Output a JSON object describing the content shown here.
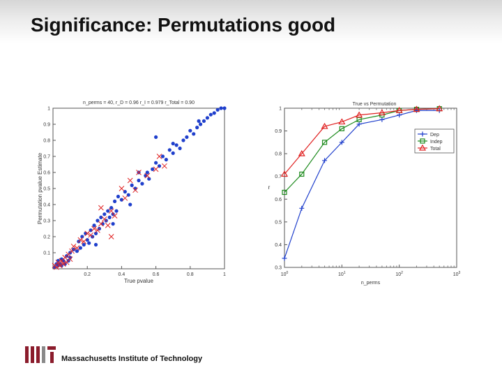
{
  "slide": {
    "title": "Significance: Permutations good",
    "footer": "Massachusetts Institute of Technology",
    "colors": {
      "blue": "#1f3fcc",
      "red": "#e02020",
      "green": "#1c8a1c",
      "logo_red": "#8b1c2c",
      "logo_gray": "#8a8a8a"
    }
  },
  "chart_data": [
    {
      "type": "scatter",
      "title": "n_perms = 40, r_D = 0.96 r_I = 0.979 r_Total = 0.90",
      "xlabel": "True pvalue",
      "ylabel": "Permutation pvalue Estimate",
      "xlim": [
        0,
        1
      ],
      "ylim": [
        0,
        1
      ],
      "xticks": [
        "0.2",
        "0.4",
        "0.6",
        "0.8",
        "1"
      ],
      "yticks": [
        "0.1",
        "0.2",
        "0.3",
        "0.4",
        "0.5",
        "0.6",
        "0.7",
        "0.8",
        "0.9",
        "1"
      ],
      "series": [
        {
          "marker": "dot",
          "color": "#1f3fcc",
          "points": [
            [
              0.01,
              0.01
            ],
            [
              0.02,
              0.03
            ],
            [
              0.03,
              0.02
            ],
            [
              0.03,
              0.05
            ],
            [
              0.04,
              0.03
            ],
            [
              0.05,
              0.06
            ],
            [
              0.05,
              0.02
            ],
            [
              0.06,
              0.05
            ],
            [
              0.07,
              0.03
            ],
            [
              0.08,
              0.08
            ],
            [
              0.09,
              0.05
            ],
            [
              0.1,
              0.1
            ],
            [
              0.1,
              0.07
            ],
            [
              0.12,
              0.12
            ],
            [
              0.14,
              0.11
            ],
            [
              0.15,
              0.17
            ],
            [
              0.16,
              0.13
            ],
            [
              0.17,
              0.2
            ],
            [
              0.18,
              0.15
            ],
            [
              0.19,
              0.22
            ],
            [
              0.2,
              0.18
            ],
            [
              0.21,
              0.16
            ],
            [
              0.22,
              0.24
            ],
            [
              0.23,
              0.2
            ],
            [
              0.24,
              0.27
            ],
            [
              0.25,
              0.22
            ],
            [
              0.26,
              0.3
            ],
            [
              0.27,
              0.25
            ],
            [
              0.28,
              0.32
            ],
            [
              0.29,
              0.28
            ],
            [
              0.3,
              0.34
            ],
            [
              0.31,
              0.3
            ],
            [
              0.32,
              0.36
            ],
            [
              0.33,
              0.32
            ],
            [
              0.34,
              0.38
            ],
            [
              0.35,
              0.34
            ],
            [
              0.36,
              0.42
            ],
            [
              0.37,
              0.36
            ],
            [
              0.38,
              0.45
            ],
            [
              0.4,
              0.43
            ],
            [
              0.42,
              0.48
            ],
            [
              0.44,
              0.46
            ],
            [
              0.46,
              0.52
            ],
            [
              0.48,
              0.5
            ],
            [
              0.5,
              0.55
            ],
            [
              0.52,
              0.53
            ],
            [
              0.54,
              0.58
            ],
            [
              0.56,
              0.56
            ],
            [
              0.58,
              0.62
            ],
            [
              0.6,
              0.66
            ],
            [
              0.62,
              0.64
            ],
            [
              0.64,
              0.7
            ],
            [
              0.66,
              0.68
            ],
            [
              0.68,
              0.74
            ],
            [
              0.7,
              0.72
            ],
            [
              0.72,
              0.77
            ],
            [
              0.74,
              0.75
            ],
            [
              0.76,
              0.8
            ],
            [
              0.78,
              0.82
            ],
            [
              0.8,
              0.86
            ],
            [
              0.82,
              0.84
            ],
            [
              0.84,
              0.88
            ],
            [
              0.86,
              0.9
            ],
            [
              0.88,
              0.92
            ],
            [
              0.9,
              0.94
            ],
            [
              0.92,
              0.96
            ],
            [
              0.94,
              0.97
            ],
            [
              0.96,
              0.99
            ],
            [
              0.98,
              1.0
            ],
            [
              1.0,
              1.0
            ],
            [
              0.6,
              0.82
            ],
            [
              0.55,
              0.6
            ],
            [
              0.45,
              0.4
            ],
            [
              0.25,
              0.15
            ],
            [
              0.35,
              0.28
            ],
            [
              0.7,
              0.78
            ],
            [
              0.5,
              0.6
            ],
            [
              0.85,
              0.92
            ]
          ]
        },
        {
          "marker": "x",
          "color": "#e02020",
          "points": [
            [
              0.01,
              0.02
            ],
            [
              0.02,
              0.01
            ],
            [
              0.03,
              0.04
            ],
            [
              0.04,
              0.02
            ],
            [
              0.05,
              0.05
            ],
            [
              0.06,
              0.03
            ],
            [
              0.07,
              0.07
            ],
            [
              0.08,
              0.04
            ],
            [
              0.09,
              0.09
            ],
            [
              0.1,
              0.06
            ],
            [
              0.11,
              0.11
            ],
            [
              0.12,
              0.14
            ],
            [
              0.14,
              0.13
            ],
            [
              0.16,
              0.18
            ],
            [
              0.18,
              0.17
            ],
            [
              0.2,
              0.22
            ],
            [
              0.22,
              0.21
            ],
            [
              0.24,
              0.25
            ],
            [
              0.26,
              0.24
            ],
            [
              0.28,
              0.28
            ],
            [
              0.3,
              0.31
            ],
            [
              0.32,
              0.27
            ],
            [
              0.34,
              0.36
            ],
            [
              0.36,
              0.33
            ],
            [
              0.4,
              0.5
            ],
            [
              0.42,
              0.44
            ],
            [
              0.45,
              0.55
            ],
            [
              0.48,
              0.49
            ],
            [
              0.5,
              0.6
            ],
            [
              0.55,
              0.58
            ],
            [
              0.6,
              0.62
            ],
            [
              0.62,
              0.7
            ],
            [
              0.65,
              0.64
            ],
            [
              0.28,
              0.38
            ],
            [
              0.34,
              0.2
            ]
          ]
        }
      ]
    },
    {
      "type": "line",
      "title": "True vs Permutation",
      "xlabel": "n_perms",
      "ylabel": "r",
      "xscale": "log",
      "xlim": [
        1,
        1000
      ],
      "ylim": [
        0.3,
        1
      ],
      "xticks": [
        "10^0",
        "10^1",
        "10^2",
        "10^3"
      ],
      "yticks": [
        "0.3",
        "0.4",
        "0.5",
        "0.6",
        "0.7",
        "0.8",
        "0.9",
        "1"
      ],
      "legend": "top-right",
      "x": [
        1,
        2,
        5,
        10,
        20,
        50,
        100,
        200,
        500
      ],
      "series": [
        {
          "name": "Dep",
          "marker": "+",
          "color": "#1f3fcc",
          "values": [
            0.34,
            0.56,
            0.77,
            0.85,
            0.93,
            0.95,
            0.97,
            0.99,
            0.99
          ]
        },
        {
          "name": "Indep",
          "marker": "square",
          "color": "#1c8a1c",
          "values": [
            0.63,
            0.71,
            0.85,
            0.91,
            0.95,
            0.97,
            0.99,
            0.995,
            0.998
          ]
        },
        {
          "name": "Total",
          "marker": "triangle",
          "color": "#e02020",
          "values": [
            0.71,
            0.8,
            0.92,
            0.94,
            0.97,
            0.98,
            0.99,
            0.995,
            0.998
          ]
        }
      ]
    }
  ]
}
